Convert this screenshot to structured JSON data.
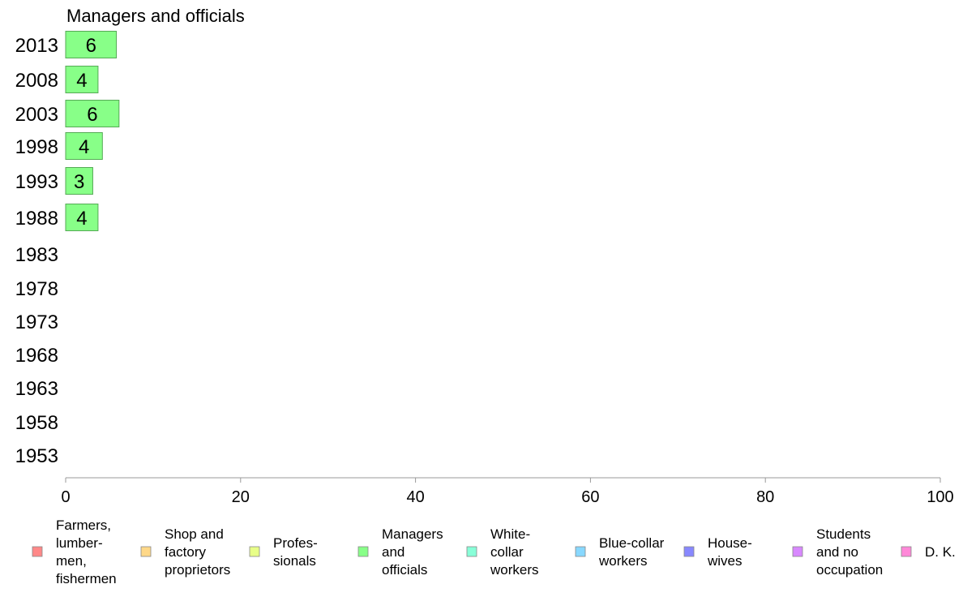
{
  "chart_data": {
    "type": "bar",
    "orientation": "horizontal",
    "title": "Managers and officials",
    "categories": [
      "2013",
      "2008",
      "2003",
      "1998",
      "1993",
      "1988",
      "1983",
      "1978",
      "1973",
      "1968",
      "1963",
      "1958",
      "1953"
    ],
    "values": [
      5.8,
      3.7,
      6.1,
      4.2,
      3.1,
      3.7,
      null,
      null,
      null,
      null,
      null,
      null,
      null
    ],
    "data_labels": [
      "6",
      "4",
      "6",
      "4",
      "3",
      "4",
      "",
      "",
      "",
      "",
      "",
      "",
      ""
    ],
    "xlim": [
      0,
      100
    ],
    "xticks": [
      "0",
      "20",
      "40",
      "60",
      "80",
      "100"
    ],
    "grid": false,
    "bar_color": "#88ff88",
    "bar_stroke": "#55aa55",
    "legend_position": "bottom",
    "legend": [
      {
        "lines": [
          "Farmers,",
          "lumber-",
          "men,",
          "fishermen"
        ],
        "color": "#ff8888"
      },
      {
        "lines": [
          "Shop and",
          "factory",
          "proprietors"
        ],
        "color": "#ffd888"
      },
      {
        "lines": [
          "Profes-",
          "sionals"
        ],
        "color": "#e8ff88"
      },
      {
        "lines": [
          "Managers",
          "and",
          "officials"
        ],
        "color": "#88ff88"
      },
      {
        "lines": [
          "White-",
          "collar",
          "workers"
        ],
        "color": "#88ffd8"
      },
      {
        "lines": [
          "Blue-collar",
          "workers"
        ],
        "color": "#88d8ff"
      },
      {
        "lines": [
          "House-",
          "wives"
        ],
        "color": "#8888ff"
      },
      {
        "lines": [
          "Students",
          "and no",
          "occupation"
        ],
        "color": "#d888ff"
      },
      {
        "lines": [
          "D. K."
        ],
        "color": "#ff88d8"
      }
    ]
  }
}
